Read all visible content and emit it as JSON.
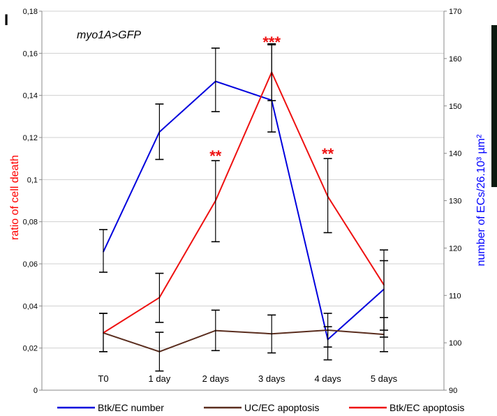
{
  "panel_label": "I",
  "side_strip_color": "#0a1a0f",
  "chart_data": {
    "type": "line",
    "annotation": "myo1A>GFP",
    "categories": [
      "T0",
      "1 day",
      "2 days",
      "3 days",
      "4 days",
      "5 days"
    ],
    "ylabel_left": "ratio of cell death",
    "ylabel_right": "number of ECs/26.10³ µm²",
    "ylabel_left_color": "#ff0000",
    "ylabel_right_color": "#0000ff",
    "ylim_left": [
      0,
      0.18
    ],
    "yticks_left": [
      "0",
      "0,02",
      "0,04",
      "0,06",
      "0,08",
      "0,1",
      "0,12",
      "0,14",
      "0,16",
      "0,18"
    ],
    "ylim_right": [
      90,
      170
    ],
    "yticks_right": [
      "90",
      "100",
      "110",
      "120",
      "130",
      "140",
      "150",
      "160",
      "170"
    ],
    "grid": true,
    "legend_position": "bottom",
    "series": [
      {
        "name": "Btk/EC number",
        "axis": "right",
        "color": "#0000dd",
        "values": [
          119.2,
          144.5,
          155.2,
          151.2,
          100.7,
          111.3
        ],
        "err_low": [
          114.9,
          138.7,
          148.8,
          144.5,
          96.4,
          101.2
        ],
        "err_high": [
          123.9,
          150.4,
          162.2,
          162.9,
          103.4,
          119.6
        ]
      },
      {
        "name": "UC/EC apoptosis",
        "axis": "left",
        "color": "#5a2d1e",
        "values": [
          0.0272,
          0.0183,
          0.0283,
          0.0268,
          0.0285,
          0.0265
        ],
        "err_low": [
          0.0183,
          0.0091,
          0.0188,
          0.0177,
          0.0205,
          0.0183
        ],
        "err_high": [
          0.0365,
          0.0275,
          0.038,
          0.0357,
          0.0365,
          0.0345
        ]
      },
      {
        "name": "Btk/EC apoptosis",
        "axis": "left",
        "color": "#ee1111",
        "values": [
          0.0272,
          0.044,
          0.09,
          0.151,
          0.092,
          0.05
        ],
        "err_low": [
          0.0183,
          0.0322,
          0.0705,
          0.1375,
          0.0748,
          0.0285
        ],
        "err_high": [
          0.0365,
          0.0555,
          0.109,
          0.1645,
          0.11,
          0.0615
        ]
      }
    ],
    "significance": [
      {
        "category": "2 days",
        "label": "**",
        "value": 0.112
      },
      {
        "category": "3 days",
        "label": "***",
        "value": 0.166
      },
      {
        "category": "4 days",
        "label": "**",
        "value": 0.113
      }
    ],
    "significance_color": "#ee1111"
  }
}
